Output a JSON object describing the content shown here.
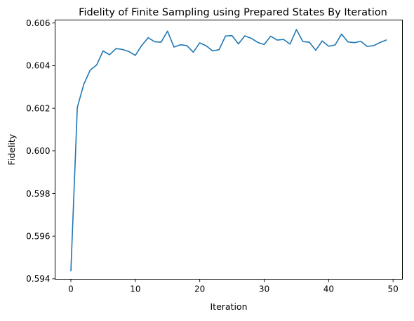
{
  "chart_data": {
    "type": "line",
    "title": "Fidelity of Finite Sampling using Prepared States By Iteration",
    "xlabel": "Iteration",
    "ylabel": "Fidelity",
    "xlim": [
      -2.45,
      51.45
    ],
    "ylim": [
      0.59398,
      0.60614
    ],
    "xticks": [
      0,
      10,
      20,
      30,
      40,
      50
    ],
    "yticks": [
      0.594,
      0.596,
      0.598,
      0.6,
      0.602,
      0.604,
      0.606
    ],
    "ytick_labels": [
      "0.594",
      "0.596",
      "0.598",
      "0.600",
      "0.602",
      "0.604",
      "0.606"
    ],
    "grid": false,
    "legend": "none",
    "series": [
      {
        "color": "#1f77b4",
        "x": [
          0,
          1,
          2,
          3,
          4,
          5,
          6,
          7,
          8,
          9,
          10,
          11,
          12,
          13,
          14,
          15,
          16,
          17,
          18,
          19,
          20,
          21,
          22,
          23,
          24,
          25,
          26,
          27,
          28,
          29,
          30,
          31,
          32,
          33,
          34,
          35,
          36,
          37,
          38,
          39,
          40,
          41,
          42,
          43,
          44,
          45,
          46,
          47,
          48,
          49
        ],
        "values": [
          0.59435,
          0.60204,
          0.60312,
          0.60379,
          0.60403,
          0.60469,
          0.60451,
          0.6048,
          0.60476,
          0.60466,
          0.60448,
          0.60495,
          0.60531,
          0.60512,
          0.6051,
          0.60562,
          0.60487,
          0.60498,
          0.60494,
          0.60463,
          0.60507,
          0.60493,
          0.60469,
          0.60475,
          0.60539,
          0.60541,
          0.60502,
          0.6054,
          0.60528,
          0.60509,
          0.60499,
          0.60538,
          0.6052,
          0.60523,
          0.60501,
          0.60569,
          0.60513,
          0.6051,
          0.60472,
          0.60516,
          0.60491,
          0.60497,
          0.60548,
          0.60511,
          0.60508,
          0.60514,
          0.6049,
          0.60494,
          0.60509,
          0.60521
        ]
      }
    ]
  }
}
